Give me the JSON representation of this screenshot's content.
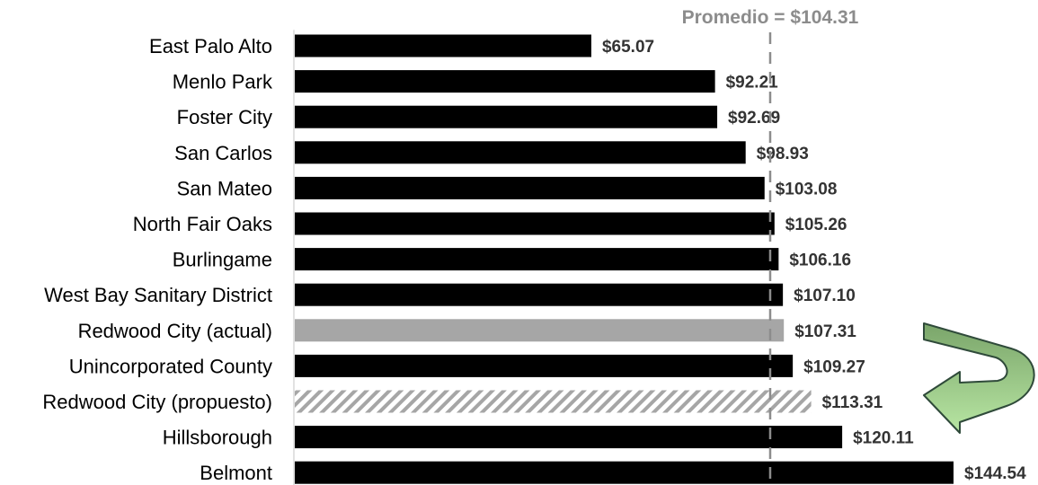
{
  "chart_data": {
    "type": "bar",
    "orientation": "horizontal",
    "categories": [
      "East Palo Alto",
      "Menlo Park",
      "Foster City",
      "San Carlos",
      "San Mateo",
      "North Fair Oaks",
      "Burlingame",
      "West Bay Sanitary District",
      "Redwood City (actual)",
      "Unincorporated County",
      "Redwood City (propuesto)",
      "Hillsborough",
      "Belmont"
    ],
    "values": [
      65.07,
      92.21,
      92.69,
      98.93,
      103.08,
      105.26,
      106.16,
      107.1,
      107.31,
      109.27,
      113.31,
      120.11,
      144.54
    ],
    "value_labels": [
      "$65.07",
      "$92.21",
      "$92.69",
      "$98.93",
      "$103.08",
      "$105.26",
      "$106.16",
      "$107.10",
      "$107.31",
      "$109.27",
      "$113.31",
      "$120.11",
      "$144.54"
    ],
    "bar_styles": [
      "solid",
      "solid",
      "solid",
      "solid",
      "solid",
      "solid",
      "solid",
      "solid",
      "highlight",
      "solid",
      "hatched",
      "solid",
      "solid"
    ],
    "average": {
      "value": 104.31,
      "label": "Promedio = $104.31"
    },
    "title": "",
    "xlabel": "",
    "ylabel": "",
    "xlim": [
      0,
      144.54
    ],
    "grid": false,
    "legend": "none",
    "annotation": "curved-arrow",
    "colors": {
      "bar": "#000000",
      "highlight": "#a6a6a6",
      "hatch": "#a6a6a6",
      "average_line": "#8c8c8c",
      "value_text": "#333333",
      "arrow_dark": "#7aa56a",
      "arrow_light": "#b8e6a3",
      "arrow_outline": "#2f4a3a",
      "axis": "#d9d9d9"
    }
  }
}
